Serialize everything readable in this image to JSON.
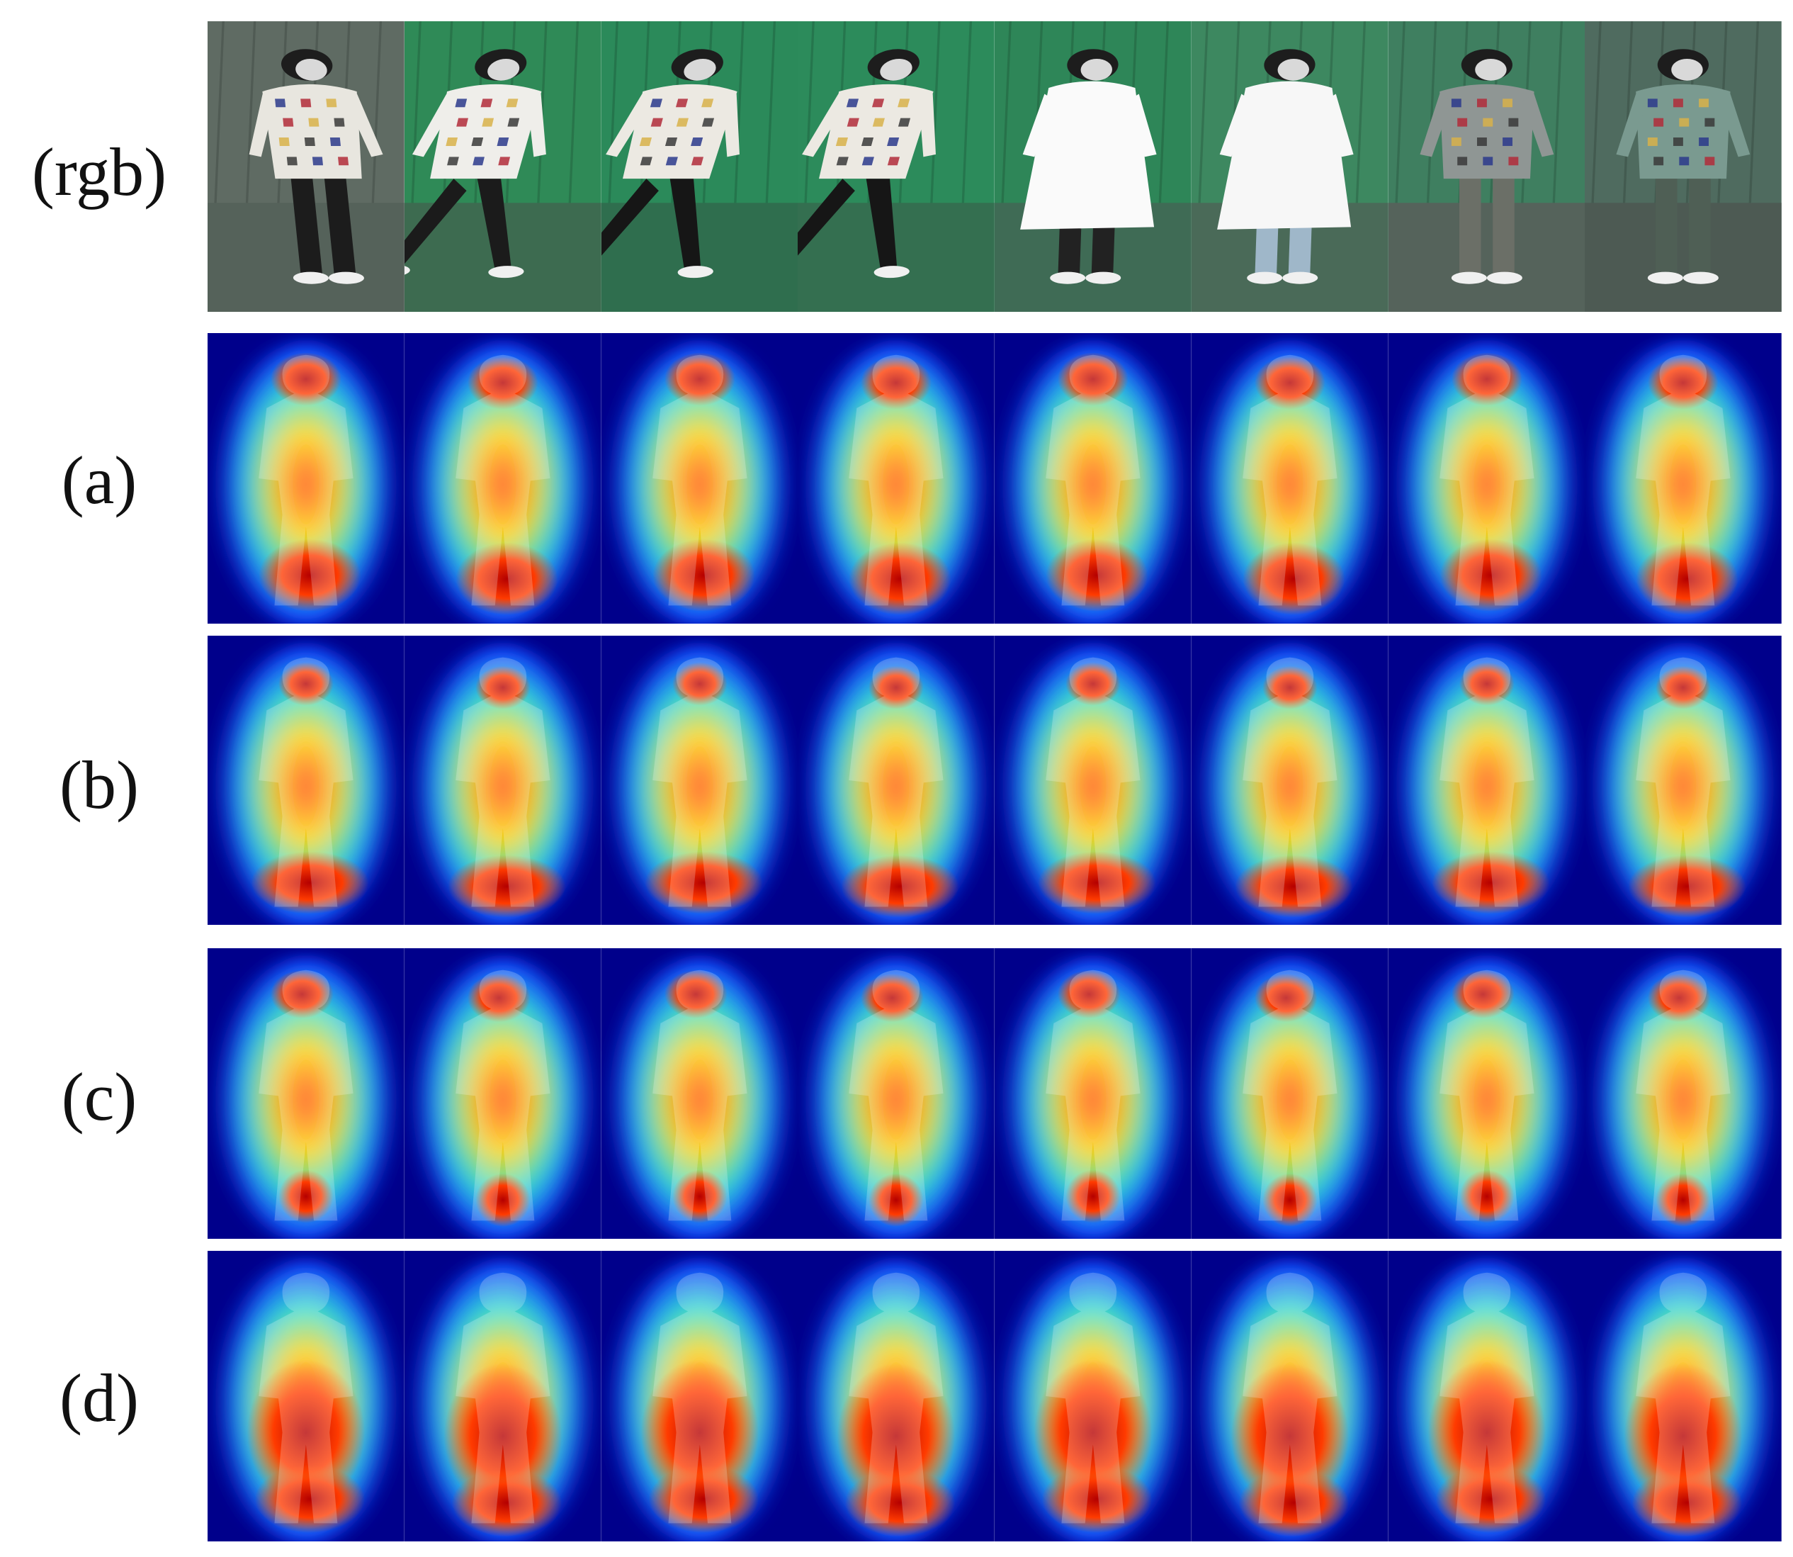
{
  "rows": [
    {
      "label": "(rgb)",
      "kind": "rgb"
    },
    {
      "label": "(a)",
      "kind": "heat"
    },
    {
      "label": "(b)",
      "kind": "heat"
    },
    {
      "label": "(c)",
      "kind": "heat"
    },
    {
      "label": "(d)",
      "kind": "heat"
    }
  ],
  "rgb_scenes": [
    {
      "bg": "#5f6b63",
      "floor": "#55625a",
      "shirt": "#e8e6df",
      "pants": "#1c1c1c",
      "pose": "walk-left"
    },
    {
      "bg": "#2f8a57",
      "floor": "#3d6b50",
      "shirt": "#efeeea",
      "pants": "#1b1b1b",
      "pose": "stride"
    },
    {
      "bg": "#2b8a5a",
      "floor": "#2f6e4e",
      "shirt": "#ece9e2",
      "pants": "#161616",
      "pose": "stride-right"
    },
    {
      "bg": "#2c8b5b",
      "floor": "#346f50",
      "shirt": "#ece9e2",
      "pants": "#161616",
      "pose": "stride-right"
    },
    {
      "bg": "#2e8658",
      "floor": "#3f6b55",
      "shirt": "#fafafa",
      "pants": "#222222",
      "pose": "coat"
    },
    {
      "bg": "#3d8860",
      "floor": "#4a6a58",
      "shirt": "#f7f7f7",
      "pants": "#9fb7c9",
      "pose": "coat"
    },
    {
      "bg": "#3f7f60",
      "floor": "#55635b",
      "shirt": "#8f9694",
      "pants": "#6b6f67",
      "pose": "front"
    },
    {
      "bg": "#4f6b5f",
      "floor": "#4d5a53",
      "shirt": "#7a9a90",
      "pants": "#4f5f55",
      "pose": "front"
    }
  ],
  "colors": {
    "heat_low": "#00008b",
    "heat_high": "#b50000",
    "label_text": "#111111"
  }
}
